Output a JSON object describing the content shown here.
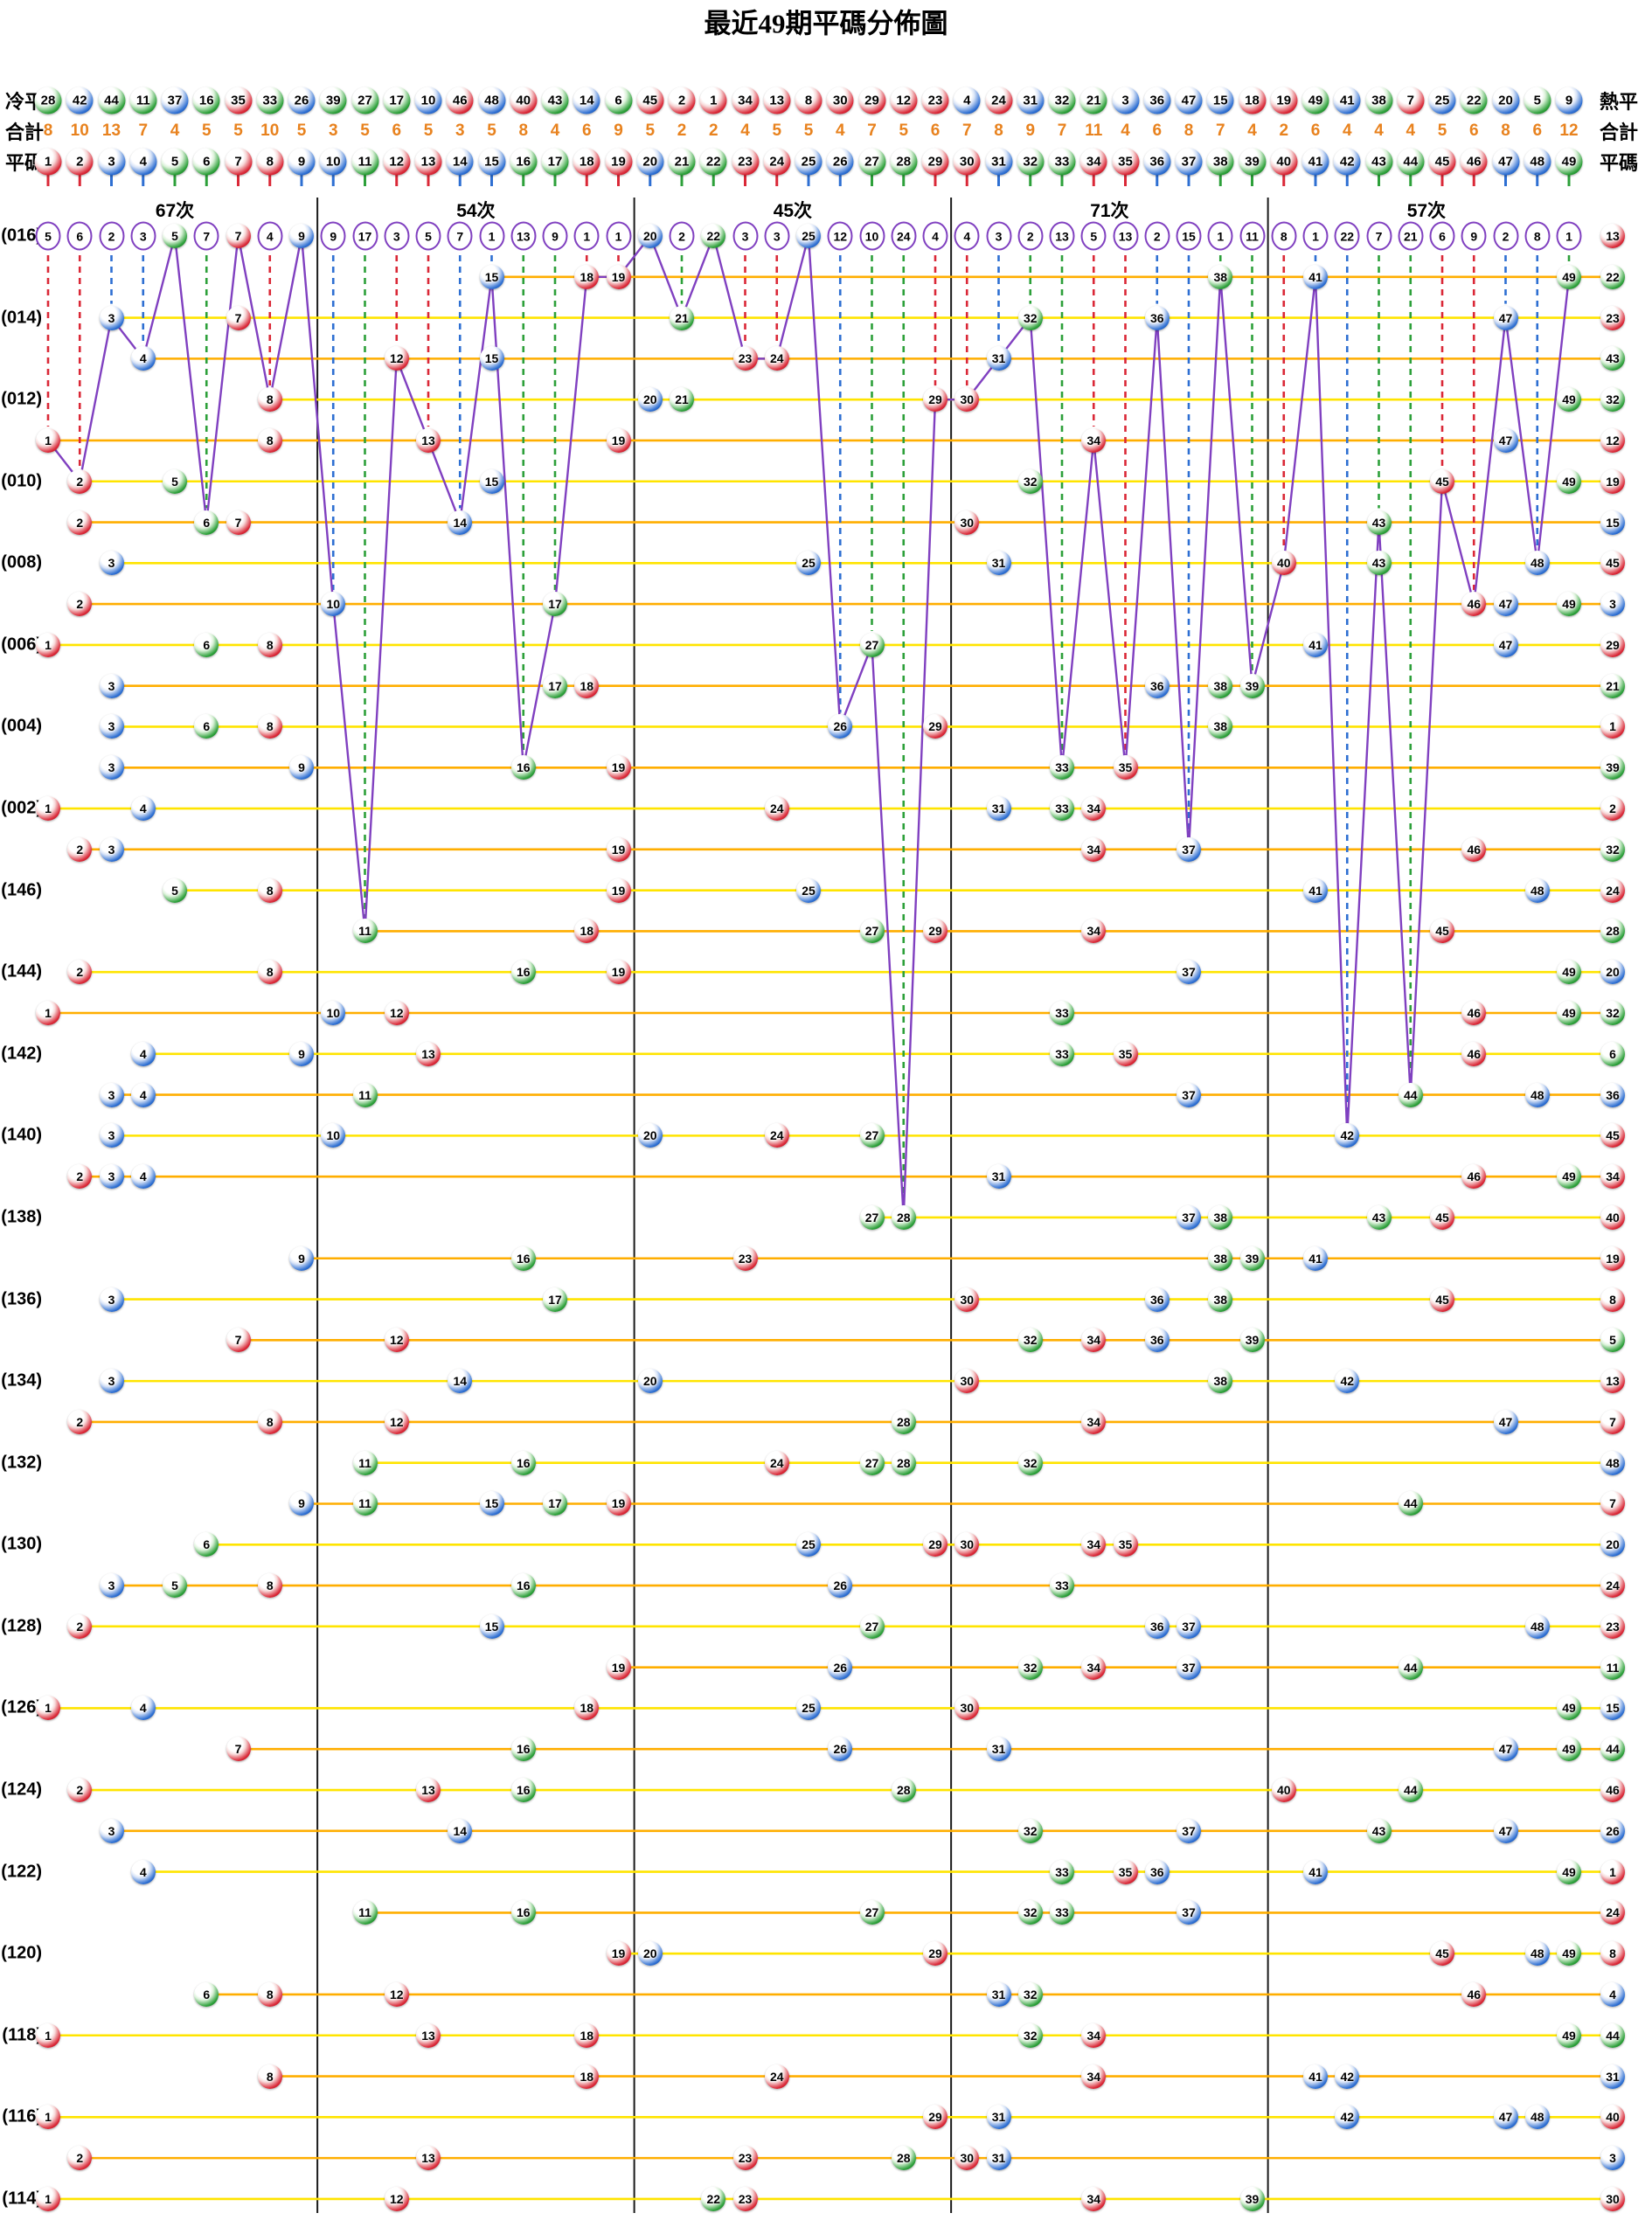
{
  "title": "最近49期平碼分佈圖",
  "header": {
    "cold_label": "冷平",
    "hot_label": "熱平",
    "total_label_left": "合計",
    "total_label_right": "合計",
    "code_label_left": "平碼",
    "code_label_right": "平碼"
  },
  "colors": {
    "red": "#da2837",
    "blue": "#2e6fd2",
    "green": "#2da03a",
    "purple": "#8040c0",
    "line_yellow": "#ffe400",
    "line_orange": "#ffae00",
    "total_orange": "#e8821e",
    "separator": "#1a1a1a"
  },
  "chart_data": {
    "type": "scatter",
    "title": "最近49期平碼分佈圖",
    "group_labels": [
      "67次",
      "54次",
      "45次",
      "71次",
      "57次"
    ],
    "group_ranges": [
      [
        1,
        9
      ],
      [
        10,
        19
      ],
      [
        20,
        29
      ],
      [
        30,
        39
      ],
      [
        40,
        49
      ]
    ],
    "numbers": [
      1,
      2,
      3,
      4,
      5,
      6,
      7,
      8,
      9,
      10,
      11,
      12,
      13,
      14,
      15,
      16,
      17,
      18,
      19,
      20,
      21,
      22,
      23,
      24,
      25,
      26,
      27,
      28,
      29,
      30,
      31,
      32,
      33,
      34,
      35,
      36,
      37,
      38,
      39,
      40,
      41,
      42,
      43,
      44,
      45,
      46,
      47,
      48,
      49
    ],
    "cold_to_hot_order": [
      28,
      42,
      44,
      11,
      37,
      16,
      35,
      33,
      26,
      39,
      27,
      17,
      10,
      46,
      48,
      40,
      43,
      14,
      6,
      45,
      2,
      1,
      34,
      13,
      8,
      30,
      29,
      12,
      23,
      4,
      24,
      31,
      32,
      21,
      3,
      36,
      47,
      15,
      18,
      19,
      49,
      41,
      38,
      7,
      25,
      22,
      20,
      5,
      9
    ],
    "totals": [
      8,
      10,
      13,
      7,
      4,
      5,
      5,
      10,
      5,
      3,
      5,
      6,
      5,
      3,
      5,
      8,
      4,
      6,
      9,
      5,
      2,
      2,
      4,
      5,
      5,
      4,
      7,
      5,
      6,
      7,
      8,
      9,
      7,
      11,
      4,
      6,
      8,
      7,
      4,
      2,
      6,
      4,
      4,
      4,
      5,
      6,
      8,
      6,
      12
    ],
    "miss_counts": [
      5,
      6,
      2,
      3,
      0,
      7,
      0,
      4,
      0,
      9,
      17,
      3,
      5,
      7,
      1,
      13,
      9,
      1,
      1,
      0,
      2,
      0,
      3,
      3,
      0,
      12,
      10,
      24,
      4,
      4,
      3,
      2,
      13,
      5,
      13,
      2,
      15,
      1,
      11,
      8,
      1,
      22,
      7,
      21,
      6,
      9,
      2,
      8,
      1
    ],
    "ball_colors": {
      "red": [
        1,
        2,
        7,
        8,
        12,
        13,
        18,
        19,
        23,
        24,
        29,
        30,
        34,
        35,
        40,
        45,
        46
      ],
      "blue": [
        3,
        4,
        9,
        10,
        14,
        15,
        20,
        25,
        26,
        31,
        36,
        37,
        41,
        42,
        47,
        48
      ],
      "green": [
        5,
        6,
        11,
        16,
        17,
        21,
        22,
        27,
        28,
        32,
        33,
        38,
        39,
        43,
        44,
        49
      ]
    },
    "rows": [
      {
        "label": "(016)",
        "numbers": [
          5,
          7,
          9,
          20,
          22,
          25
        ],
        "special": 13
      },
      {
        "label": "",
        "numbers": [
          15,
          18,
          19,
          38,
          41,
          49
        ],
        "special": 22
      },
      {
        "label": "(014)",
        "numbers": [
          3,
          7,
          21,
          32,
          36,
          47
        ],
        "special": 23
      },
      {
        "label": "",
        "numbers": [
          4,
          12,
          15,
          23,
          24,
          31
        ],
        "special": 43
      },
      {
        "label": "(012)",
        "numbers": [
          8,
          20,
          21,
          29,
          30,
          49
        ],
        "special": 32
      },
      {
        "label": "",
        "numbers": [
          1,
          8,
          13,
          19,
          34,
          47
        ],
        "special": 12
      },
      {
        "label": "(010)",
        "numbers": [
          2,
          5,
          15,
          32,
          45,
          49
        ],
        "special": 19
      },
      {
        "label": "",
        "numbers": [
          2,
          6,
          7,
          14,
          30,
          43
        ],
        "special": 15
      },
      {
        "label": "(008)",
        "numbers": [
          3,
          25,
          31,
          40,
          43,
          48
        ],
        "special": 45
      },
      {
        "label": "",
        "numbers": [
          2,
          10,
          17,
          46,
          47,
          49
        ],
        "special": 3
      },
      {
        "label": "(006)",
        "numbers": [
          1,
          6,
          8,
          27,
          41,
          47
        ],
        "special": 29
      },
      {
        "label": "",
        "numbers": [
          3,
          17,
          18,
          36,
          38,
          39
        ],
        "special": 21
      },
      {
        "label": "(004)",
        "numbers": [
          3,
          6,
          8,
          26,
          29,
          38
        ],
        "special": 1
      },
      {
        "label": "",
        "numbers": [
          3,
          9,
          16,
          19,
          33,
          35
        ],
        "special": 39
      },
      {
        "label": "(002)",
        "numbers": [
          1,
          4,
          24,
          31,
          33,
          34
        ],
        "special": 2
      },
      {
        "label": "",
        "numbers": [
          2,
          3,
          19,
          34,
          37,
          46
        ],
        "special": 32
      },
      {
        "label": "(146)",
        "numbers": [
          5,
          8,
          19,
          25,
          41,
          48
        ],
        "special": 24
      },
      {
        "label": "",
        "numbers": [
          11,
          18,
          27,
          29,
          34,
          45
        ],
        "special": 28
      },
      {
        "label": "(144)",
        "numbers": [
          2,
          8,
          16,
          19,
          37,
          49
        ],
        "special": 20
      },
      {
        "label": "",
        "numbers": [
          1,
          10,
          12,
          33,
          46,
          49
        ],
        "special": 32
      },
      {
        "label": "(142)",
        "numbers": [
          4,
          9,
          13,
          33,
          35,
          46
        ],
        "special": 6
      },
      {
        "label": "",
        "numbers": [
          3,
          4,
          11,
          37,
          44,
          48
        ],
        "special": 36
      },
      {
        "label": "(140)",
        "numbers": [
          3,
          10,
          20,
          24,
          27,
          42
        ],
        "special": 45
      },
      {
        "label": "",
        "numbers": [
          2,
          3,
          4,
          31,
          46,
          49
        ],
        "special": 34
      },
      {
        "label": "(138)",
        "numbers": [
          27,
          28,
          37,
          38,
          43,
          45
        ],
        "special": 40
      },
      {
        "label": "",
        "numbers": [
          9,
          16,
          23,
          38,
          39,
          41
        ],
        "special": 19
      },
      {
        "label": "(136)",
        "numbers": [
          3,
          17,
          30,
          36,
          38,
          45
        ],
        "special": 8
      },
      {
        "label": "",
        "numbers": [
          7,
          12,
          32,
          34,
          36,
          39
        ],
        "special": 5
      },
      {
        "label": "(134)",
        "numbers": [
          3,
          14,
          20,
          30,
          38,
          42
        ],
        "special": 13
      },
      {
        "label": "",
        "numbers": [
          2,
          8,
          12,
          28,
          34,
          47
        ],
        "special": 7
      },
      {
        "label": "(132)",
        "numbers": [
          11,
          16,
          24,
          27,
          28,
          32
        ],
        "special": 48
      },
      {
        "label": "",
        "numbers": [
          9,
          11,
          15,
          17,
          19,
          44
        ],
        "special": 7
      },
      {
        "label": "(130)",
        "numbers": [
          6,
          25,
          29,
          30,
          34,
          35
        ],
        "special": 20
      },
      {
        "label": "",
        "numbers": [
          3,
          5,
          8,
          16,
          26,
          33
        ],
        "special": 24
      },
      {
        "label": "(128)",
        "numbers": [
          2,
          15,
          27,
          36,
          37,
          48
        ],
        "special": 23
      },
      {
        "label": "",
        "numbers": [
          19,
          26,
          32,
          34,
          37,
          44
        ],
        "special": 11
      },
      {
        "label": "(126)",
        "numbers": [
          1,
          4,
          18,
          25,
          30,
          49
        ],
        "special": 15
      },
      {
        "label": "",
        "numbers": [
          7,
          16,
          26,
          31,
          47,
          49
        ],
        "special": 44
      },
      {
        "label": "(124)",
        "numbers": [
          2,
          13,
          16,
          28,
          40,
          44
        ],
        "special": 46
      },
      {
        "label": "",
        "numbers": [
          3,
          14,
          32,
          37,
          43,
          47
        ],
        "special": 26
      },
      {
        "label": "(122)",
        "numbers": [
          4,
          33,
          35,
          36,
          41,
          49
        ],
        "special": 1
      },
      {
        "label": "",
        "numbers": [
          11,
          16,
          27,
          32,
          33,
          37
        ],
        "special": 24
      },
      {
        "label": "(120)",
        "numbers": [
          19,
          20,
          29,
          45,
          48,
          49
        ],
        "special": 8
      },
      {
        "label": "",
        "numbers": [
          6,
          8,
          12,
          31,
          32,
          46
        ],
        "special": 4
      },
      {
        "label": "(118)",
        "numbers": [
          1,
          13,
          18,
          32,
          34,
          49
        ],
        "special": 44
      },
      {
        "label": "",
        "numbers": [
          8,
          18,
          24,
          34,
          41,
          42
        ],
        "special": 31
      },
      {
        "label": "(116)",
        "numbers": [
          1,
          29,
          31,
          42,
          47,
          48
        ],
        "special": 40
      },
      {
        "label": "",
        "numbers": [
          2,
          13,
          23,
          28,
          30,
          31
        ],
        "special": 3
      },
      {
        "label": "(114)",
        "numbers": [
          1,
          12,
          22,
          23,
          34,
          39
        ],
        "special": 30
      }
    ]
  }
}
